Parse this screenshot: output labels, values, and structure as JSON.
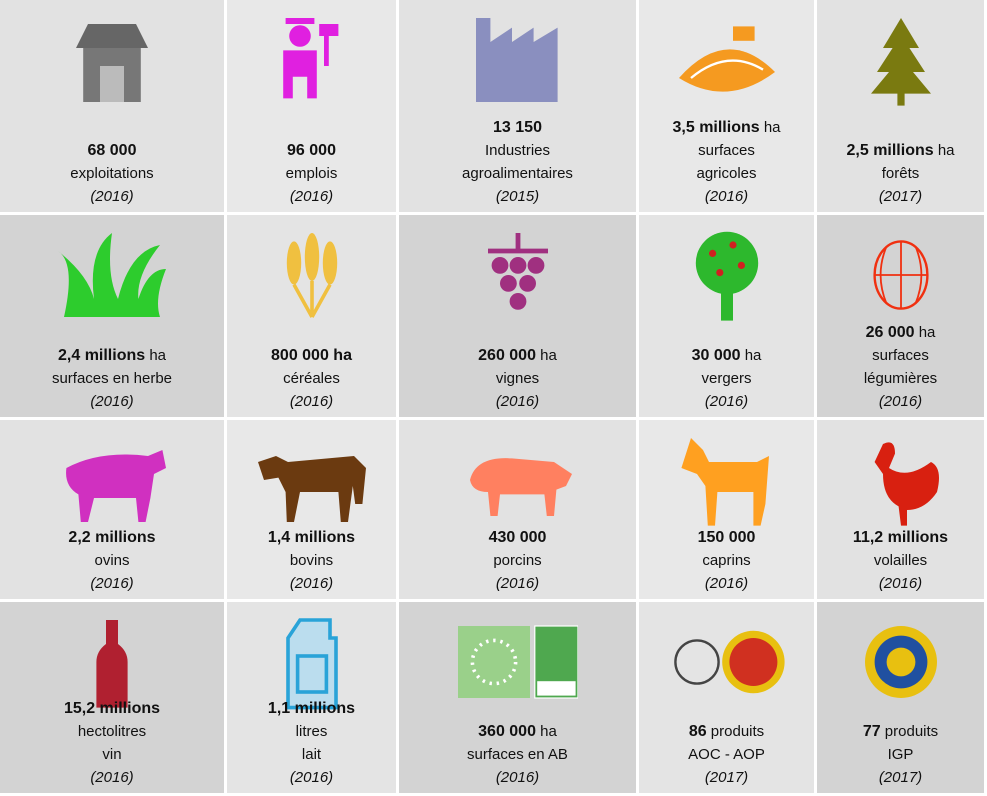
{
  "cells": [
    {
      "value": "68 000",
      "lines": [
        "exploitations"
      ],
      "year": "(2016)"
    },
    {
      "value": "96 000",
      "lines": [
        "emplois"
      ],
      "year": "(2016)"
    },
    {
      "value": "13 150",
      "lines": [
        "Industries",
        "agroalimentaires"
      ],
      "year": "(2015)"
    },
    {
      "value": "3,5 millions",
      "unit": "ha",
      "lines": [
        "surfaces",
        "agricoles"
      ],
      "year": "(2016)"
    },
    {
      "value": "2,5 millions",
      "unit": "ha",
      "lines": [
        "forêts"
      ],
      "year": "(2017)"
    },
    {
      "value": "2,4 millions",
      "unit": "ha",
      "lines": [
        "surfaces en herbe"
      ],
      "year": "(2016)"
    },
    {
      "value": "800 000 ha",
      "lines": [
        "céréales"
      ],
      "year": "(2016)"
    },
    {
      "value": "260 000",
      "unit": "ha",
      "lines": [
        "vignes"
      ],
      "year": "(2016)"
    },
    {
      "value": "30 000",
      "unit": "ha",
      "lines": [
        "vergers"
      ],
      "year": "(2016)"
    },
    {
      "value": "26 000",
      "unit": "ha",
      "lines": [
        "surfaces",
        "légumières"
      ],
      "year": "(2016)"
    },
    {
      "value": "2,2 millions",
      "lines": [
        "ovins"
      ],
      "year": "(2016)"
    },
    {
      "value": "1,4 millions",
      "lines": [
        "bovins"
      ],
      "year": "(2016)"
    },
    {
      "value": "430 000",
      "lines": [
        "porcins"
      ],
      "year": "(2016)"
    },
    {
      "value": "150 000",
      "lines": [
        "caprins"
      ],
      "year": "(2016)"
    },
    {
      "value": "11,2 millions",
      "lines": [
        "volailles"
      ],
      "year": "(2016)"
    },
    {
      "value": "15,2 millions",
      "lines": [
        "hectolitres",
        "vin"
      ],
      "year": "(2016)"
    },
    {
      "value": "1,1 millions",
      "lines": [
        "litres",
        "lait"
      ],
      "year": "(2016)"
    },
    {
      "value": "360 000",
      "unit": "ha",
      "lines": [
        "surfaces en AB"
      ],
      "year": "(2016)"
    },
    {
      "value": "86",
      "unit": "produits",
      "lines": [
        "AOC - AOP"
      ],
      "year": "(2017)"
    },
    {
      "value": "77",
      "unit": "produits",
      "lines": [
        "IGP"
      ],
      "year": "(2017)"
    }
  ]
}
